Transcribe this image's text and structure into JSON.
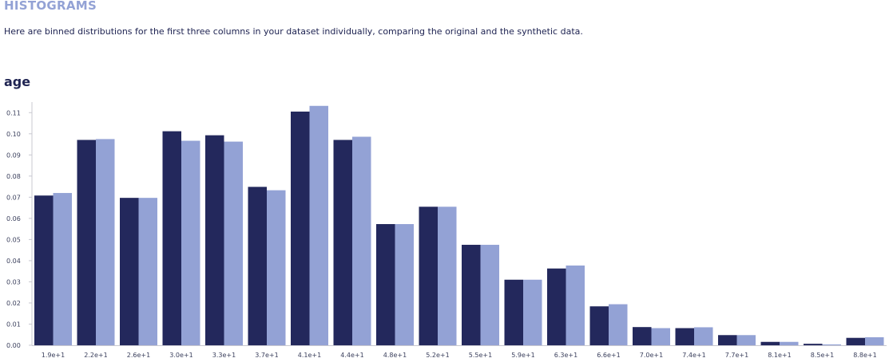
{
  "header": {
    "section_title": "HISTOGRAMS",
    "description": "Here are binned distributions for the first three columns in your dataset individually, comparing the original and the synthetic data."
  },
  "colors": {
    "original": "#23285c",
    "synthetic": "#93a2d5",
    "axis": "#c8c8d0"
  },
  "chart_data": {
    "type": "bar",
    "title": "age",
    "xlabel": "",
    "ylabel": "",
    "ylim": [
      0,
      0.115
    ],
    "yticks": [
      "0.00",
      "0.01",
      "0.02",
      "0.03",
      "0.04",
      "0.05",
      "0.06",
      "0.07",
      "0.08",
      "0.09",
      "0.10",
      "0.11"
    ],
    "categories": [
      "1.9e+1",
      "2.2e+1",
      "2.6e+1",
      "3.0e+1",
      "3.3e+1",
      "3.7e+1",
      "4.1e+1",
      "4.4e+1",
      "4.8e+1",
      "5.2e+1",
      "5.5e+1",
      "5.9e+1",
      "6.3e+1",
      "6.6e+1",
      "7.0e+1",
      "7.4e+1",
      "7.7e+1",
      "8.1e+1",
      "8.5e+1",
      "8.8e+1"
    ],
    "series": [
      {
        "values": [
          0.0708,
          0.0971,
          0.0697,
          0.1012,
          0.0993,
          0.0749,
          0.1105,
          0.0971,
          0.0573,
          0.0655,
          0.0475,
          0.031,
          0.0363,
          0.0184,
          0.0086,
          0.0081,
          0.0048,
          0.0016,
          0.0007,
          0.0035
        ]
      },
      {
        "values": [
          0.072,
          0.0975,
          0.0697,
          0.0967,
          0.0963,
          0.0733,
          0.1132,
          0.0986,
          0.0573,
          0.0655,
          0.0475,
          0.031,
          0.0377,
          0.0194,
          0.0081,
          0.0085,
          0.0048,
          0.0016,
          0.0004,
          0.0038
        ]
      }
    ],
    "grid": false,
    "legend": "none"
  }
}
